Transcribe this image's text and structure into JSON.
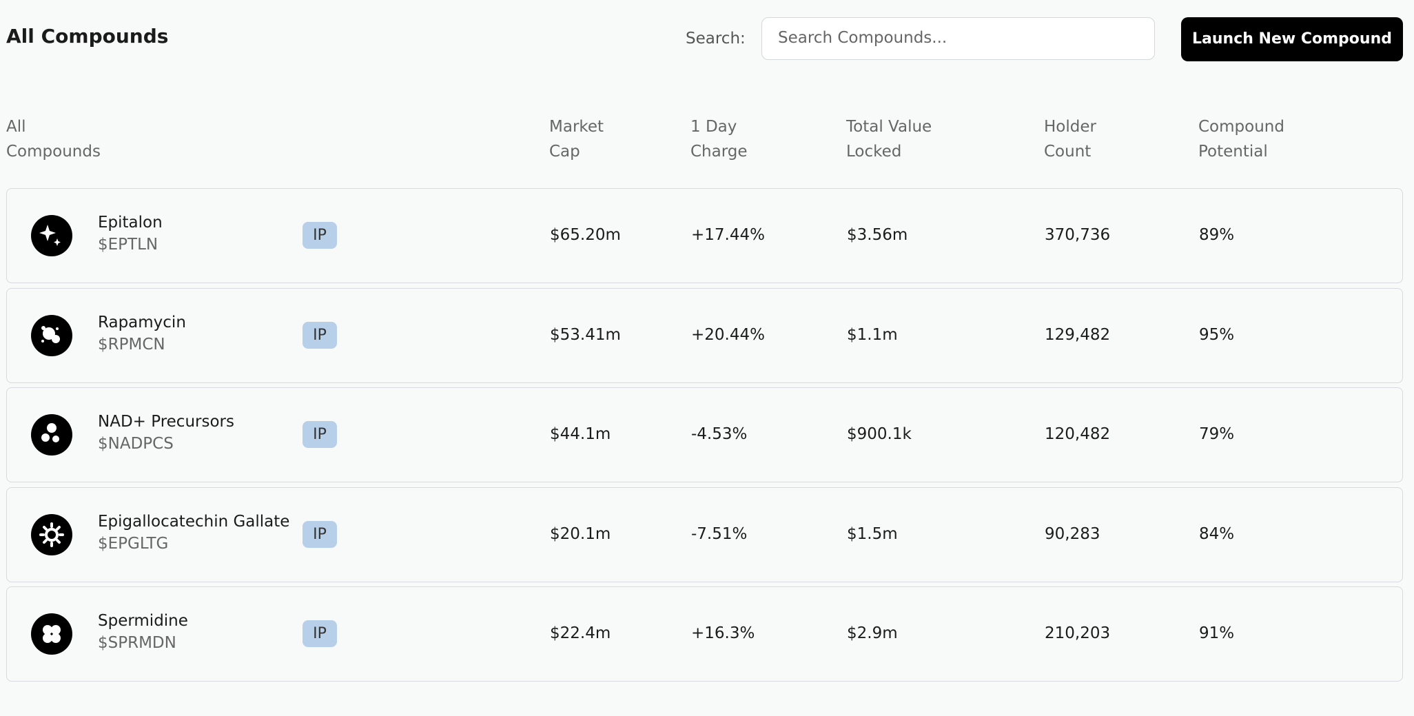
{
  "header": {
    "title": "All Compounds",
    "search_label": "Search:",
    "search_placeholder": "Search Compounds...",
    "button": "Launch New Compound"
  },
  "table": {
    "columns": [
      "All Compounds",
      "Market Cap",
      "1 Day Charge",
      "Total Value Locked",
      "Holder Count",
      "Compound Potential"
    ],
    "rows": [
      {
        "name": "Epitalon",
        "ticker": "$EPTLN",
        "badge": "IP",
        "market_cap": "$65.20m",
        "change": "+17.44%",
        "tvl": "$3.56m",
        "holders": "370,736",
        "potential": "89%"
      },
      {
        "name": "Rapamycin",
        "ticker": "$RPMCN",
        "badge": "IP",
        "market_cap": "$53.41m",
        "change": "+20.44%",
        "tvl": "$1.1m",
        "holders": "129,482",
        "potential": "95%"
      },
      {
        "name": "NAD+ Precursors",
        "ticker": "$NADPCS",
        "badge": "IP",
        "market_cap": "$44.1m",
        "change": "-4.53%",
        "tvl": "$900.1k",
        "holders": "120,482",
        "potential": "79%"
      },
      {
        "name": "Epigallocatechin Gallate",
        "ticker": "$EPGLTG",
        "badge": "IP",
        "market_cap": "$20.1m",
        "change": "-7.51%",
        "tvl": "$1.5m",
        "holders": "90,283",
        "potential": "84%"
      },
      {
        "name": "Spermidine",
        "ticker": "$SPRMDN",
        "badge": "IP",
        "market_cap": "$22.4m",
        "change": "+16.3%",
        "tvl": "$2.9m",
        "holders": "210,203",
        "potential": "91%"
      }
    ]
  }
}
